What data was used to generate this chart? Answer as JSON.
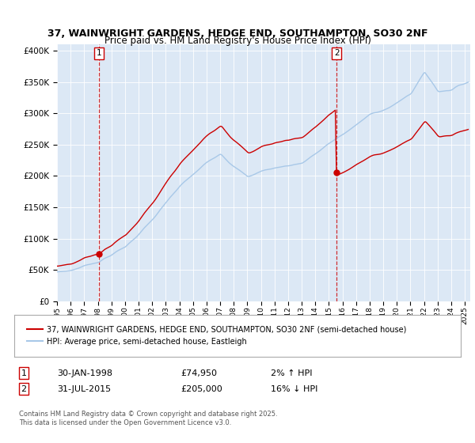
{
  "title1": "37, WAINWRIGHT GARDENS, HEDGE END, SOUTHAMPTON, SO30 2NF",
  "title2": "Price paid vs. HM Land Registry's House Price Index (HPI)",
  "legend_line1": "37, WAINWRIGHT GARDENS, HEDGE END, SOUTHAMPTON, SO30 2NF (semi-detached house)",
  "legend_line2": "HPI: Average price, semi-detached house, Eastleigh",
  "marker1_label": "1",
  "marker1_date": "30-JAN-1998",
  "marker1_price": "£74,950",
  "marker1_hpi": "2% ↑ HPI",
  "marker2_label": "2",
  "marker2_date": "31-JUL-2015",
  "marker2_price": "£205,000",
  "marker2_hpi": "16% ↓ HPI",
  "footer": "Contains HM Land Registry data © Crown copyright and database right 2025.\nThis data is licensed under the Open Government Licence v3.0.",
  "sale1_year": 1998.08,
  "sale1_price": 74950,
  "sale2_year": 2015.58,
  "sale2_price": 205000,
  "hpi_color": "#a8c8e8",
  "price_color": "#cc0000",
  "marker_color": "#cc0000",
  "bg_color": "#dce8f5",
  "ylim_min": 0,
  "ylim_max": 410000
}
